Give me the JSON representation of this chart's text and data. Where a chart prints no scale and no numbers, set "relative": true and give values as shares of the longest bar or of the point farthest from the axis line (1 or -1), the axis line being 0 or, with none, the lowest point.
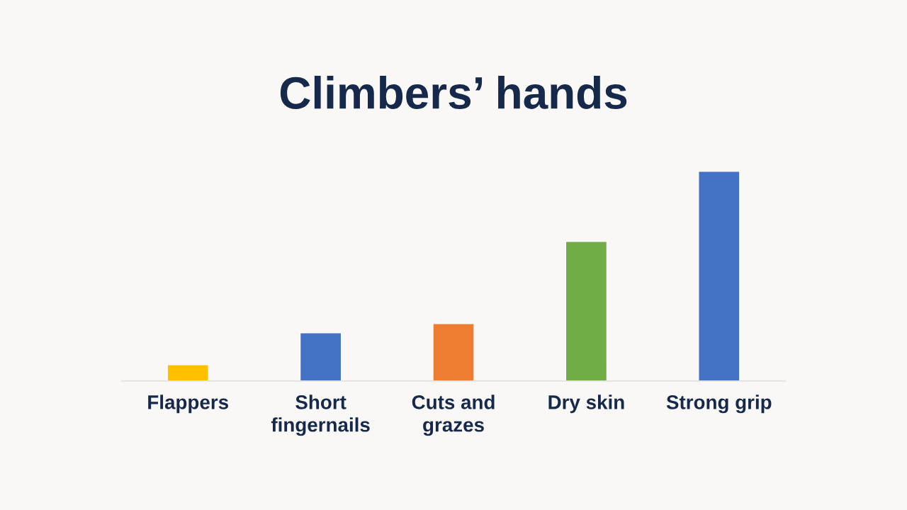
{
  "chart_data": {
    "type": "bar",
    "title": "Climbers’ hands",
    "categories": [
      "Flappers",
      "Short\nfingernails",
      "Cuts and\ngrazes",
      "Dry skin",
      "Strong grip"
    ],
    "values": [
      0.078,
      0.23,
      0.274,
      0.666,
      1
    ],
    "colors": [
      "#ffc000",
      "#4472c4",
      "#ed7d31",
      "#70ad47",
      "#4472c4"
    ],
    "relative": true,
    "grid": false,
    "legend": false
  }
}
